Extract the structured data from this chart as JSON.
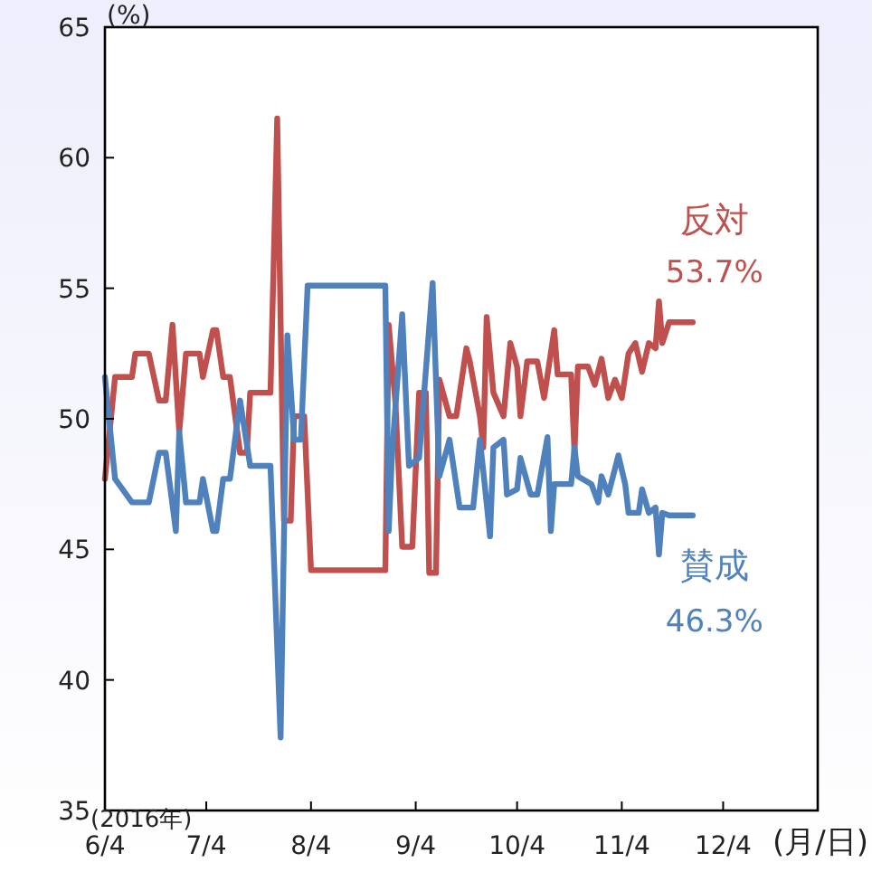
{
  "chart_data": {
    "type": "line",
    "ylabel": "(%)",
    "xlabel": "(月/日)",
    "xlim": [
      "2016-06-04",
      "2017-01-01"
    ],
    "ylim": [
      35,
      65
    ],
    "yticks": [
      35,
      40,
      45,
      50,
      55,
      60,
      65
    ],
    "xticks": [
      {
        "value": "2016-06-04",
        "label": "6/4"
      },
      {
        "value": "2016-07-04",
        "label": "7/4"
      },
      {
        "value": "2016-08-04",
        "label": "8/4"
      },
      {
        "value": "2016-09-04",
        "label": "9/4"
      },
      {
        "value": "2016-10-04",
        "label": "10/4"
      },
      {
        "value": "2016-11-04",
        "label": "11/4"
      },
      {
        "value": "2016-12-04",
        "label": "12/4"
      }
    ],
    "grid": false,
    "marker": "none",
    "line_style": "solid",
    "annotations": [
      {
        "text": "53.7%",
        "x": "2016-11-25",
        "y": 53.7
      },
      {
        "text": "46.3%",
        "x": "2016-11-25",
        "y": 46.3
      },
      "(2016年)"
    ],
    "series": [
      {
        "name": "反対",
        "color": "#c0504d",
        "x": [
          "2016-06-04",
          "2016-06-07",
          "2016-06-12",
          "2016-06-13",
          "2016-06-17",
          "2016-06-20",
          "2016-06-22",
          "2016-06-24",
          "2016-06-26",
          "2016-06-28",
          "2016-07-02",
          "2016-07-03",
          "2016-07-06",
          "2016-07-07",
          "2016-07-09",
          "2016-07-11",
          "2016-07-14",
          "2016-07-16",
          "2016-07-17",
          "2016-07-23",
          "2016-07-25",
          "2016-07-27",
          "2016-07-29",
          "2016-07-30",
          "2016-08-02",
          "2016-08-04",
          "2016-08-26",
          "2016-08-27",
          "2016-08-29",
          "2016-08-31",
          "2016-09-03",
          "2016-09-05",
          "2016-09-07",
          "2016-09-08",
          "2016-09-10",
          "2016-09-11",
          "2016-09-14",
          "2016-09-16",
          "2016-09-19",
          "2016-09-20",
          "2016-09-23",
          "2016-09-24",
          "2016-09-25",
          "2016-09-27",
          "2016-09-30",
          "2016-10-02",
          "2016-10-04",
          "2016-10-05",
          "2016-10-07",
          "2016-10-10",
          "2016-10-12",
          "2016-10-15",
          "2016-10-16",
          "2016-10-20",
          "2016-10-21",
          "2016-10-22",
          "2016-10-25",
          "2016-10-27",
          "2016-10-29",
          "2016-10-31",
          "2016-11-02",
          "2016-11-04",
          "2016-11-06",
          "2016-11-08",
          "2016-11-10",
          "2016-11-12",
          "2016-11-14",
          "2016-11-15",
          "2016-11-16",
          "2016-11-18",
          "2016-11-25"
        ],
        "values": [
          47.7,
          51.6,
          51.6,
          52.5,
          52.5,
          50.7,
          50.7,
          53.6,
          49.5,
          52.5,
          52.5,
          51.6,
          53.4,
          53.4,
          51.6,
          51.6,
          48.7,
          48.7,
          51.0,
          51.0,
          61.5,
          46.1,
          46.1,
          50.1,
          50.1,
          44.2,
          44.2,
          53.6,
          50.6,
          45.1,
          45.1,
          51.0,
          51.0,
          44.1,
          44.1,
          51.5,
          50.1,
          50.1,
          52.7,
          52.2,
          50.1,
          48.9,
          53.9,
          51.0,
          50.1,
          52.9,
          52.0,
          50.1,
          52.2,
          52.2,
          50.8,
          53.4,
          51.7,
          51.7,
          48.7,
          52.0,
          52.0,
          51.3,
          52.3,
          50.8,
          51.5,
          50.8,
          52.5,
          52.9,
          51.8,
          52.9,
          52.7,
          54.5,
          52.9,
          53.7,
          53.7
        ]
      },
      {
        "name": "賛成",
        "color": "#4f81bd",
        "x": [
          "2016-06-04",
          "2016-06-07",
          "2016-06-12",
          "2016-06-17",
          "2016-06-20",
          "2016-06-22",
          "2016-06-25",
          "2016-06-26",
          "2016-06-28",
          "2016-07-02",
          "2016-07-03",
          "2016-07-06",
          "2016-07-07",
          "2016-07-09",
          "2016-07-11",
          "2016-07-14",
          "2016-07-17",
          "2016-07-23",
          "2016-07-26",
          "2016-07-28",
          "2016-07-30",
          "2016-08-01",
          "2016-08-03",
          "2016-08-26",
          "2016-08-27",
          "2016-08-28",
          "2016-08-31",
          "2016-09-02",
          "2016-09-05",
          "2016-09-09",
          "2016-09-11",
          "2016-09-14",
          "2016-09-17",
          "2016-09-21",
          "2016-09-23",
          "2016-09-24",
          "2016-09-26",
          "2016-09-27",
          "2016-09-30",
          "2016-10-01",
          "2016-10-04",
          "2016-10-05",
          "2016-10-08",
          "2016-10-10",
          "2016-10-13",
          "2016-10-14",
          "2016-10-15",
          "2016-10-20",
          "2016-10-21",
          "2016-10-22",
          "2016-10-26",
          "2016-10-28",
          "2016-10-29",
          "2016-10-31",
          "2016-11-03",
          "2016-11-05",
          "2016-11-06",
          "2016-11-09",
          "2016-11-10",
          "2016-11-12",
          "2016-11-14",
          "2016-11-15",
          "2016-11-16",
          "2016-11-18",
          "2016-11-25"
        ],
        "values": [
          51.6,
          47.7,
          46.8,
          46.8,
          48.7,
          48.7,
          45.7,
          49.5,
          46.8,
          46.8,
          47.7,
          45.7,
          45.7,
          47.7,
          47.7,
          50.7,
          48.2,
          48.2,
          37.8,
          53.2,
          49.2,
          49.2,
          55.1,
          55.1,
          45.7,
          48.7,
          54.0,
          48.2,
          48.5,
          55.2,
          47.8,
          49.2,
          46.6,
          46.6,
          49.2,
          48.0,
          45.5,
          48.9,
          49.2,
          47.1,
          47.3,
          48.5,
          47.1,
          47.1,
          49.3,
          45.7,
          47.5,
          47.5,
          48.9,
          47.8,
          47.5,
          46.8,
          47.8,
          47.1,
          48.6,
          47.5,
          46.4,
          46.4,
          47.3,
          46.4,
          46.6,
          44.8,
          46.4,
          46.3,
          46.3
        ]
      }
    ]
  }
}
